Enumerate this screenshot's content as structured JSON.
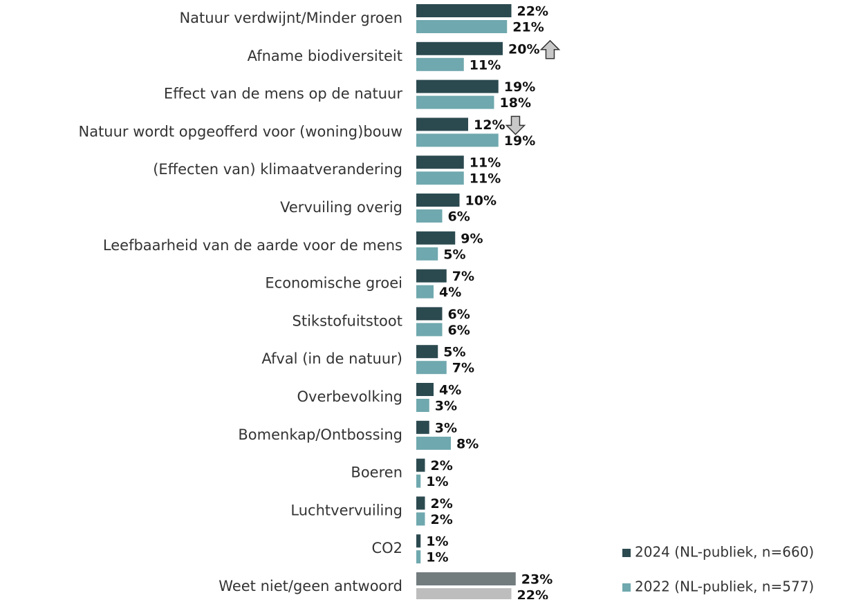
{
  "chart_data": {
    "type": "bar",
    "orientation": "horizontal",
    "categories": [
      "Natuur verdwijnt/Minder groen",
      "Afname biodiversiteit",
      "Effect van de mens op de natuur",
      "Natuur wordt opgeofferd voor (woning)bouw",
      "(Effecten van) klimaatverandering",
      "Vervuiling overig",
      "Leefbaarheid van de aarde voor de mens",
      "Economische groei",
      "Stikstofuitstoot",
      "Afval (in de natuur)",
      "Overbevolking",
      "Bomenkap/Ontbossing",
      "Boeren",
      "Luchtvervuiling",
      "CO2",
      "Weet niet/geen antwoord"
    ],
    "series": [
      {
        "name": "2024 (NL-publiek, n=660)",
        "color": "#2b4a50",
        "colors": [
          "#2b4a50",
          "#2b4a50",
          "#2b4a50",
          "#2b4a50",
          "#2b4a50",
          "#2b4a50",
          "#2b4a50",
          "#2b4a50",
          "#2b4a50",
          "#2b4a50",
          "#2b4a50",
          "#2b4a50",
          "#2b4a50",
          "#2b4a50",
          "#2b4a50",
          "#727b7e"
        ],
        "values": [
          22,
          20,
          19,
          12,
          11,
          10,
          9,
          7,
          6,
          5,
          4,
          3,
          2,
          2,
          1,
          23
        ],
        "value_labels": [
          "22%",
          "20%",
          "19%",
          "12%",
          "11%",
          "10%",
          "9%",
          "7%",
          "6%",
          "5%",
          "4%",
          "3%",
          "2%",
          "2%",
          "1%",
          "23%"
        ],
        "changes": [
          null,
          "up",
          null,
          "down",
          null,
          null,
          null,
          null,
          null,
          null,
          null,
          null,
          null,
          null,
          null,
          null
        ]
      },
      {
        "name": "2022 (NL-publiek, n=577)",
        "color": "#6fa8ae",
        "colors": [
          "#6fa8ae",
          "#6fa8ae",
          "#6fa8ae",
          "#6fa8ae",
          "#6fa8ae",
          "#6fa8ae",
          "#6fa8ae",
          "#6fa8ae",
          "#6fa8ae",
          "#6fa8ae",
          "#6fa8ae",
          "#6fa8ae",
          "#6fa8ae",
          "#6fa8ae",
          "#6fa8ae",
          "#bdbdbd"
        ],
        "values": [
          21,
          11,
          18,
          19,
          11,
          6,
          5,
          4,
          6,
          7,
          3,
          8,
          1,
          2,
          1,
          22
        ],
        "value_labels": [
          "21%",
          "11%",
          "18%",
          "19%",
          "11%",
          "6%",
          "5%",
          "4%",
          "6%",
          "7%",
          "3%",
          "8%",
          "1%",
          "2%",
          "1%",
          "22%"
        ]
      }
    ],
    "legend": "bottom-right"
  }
}
